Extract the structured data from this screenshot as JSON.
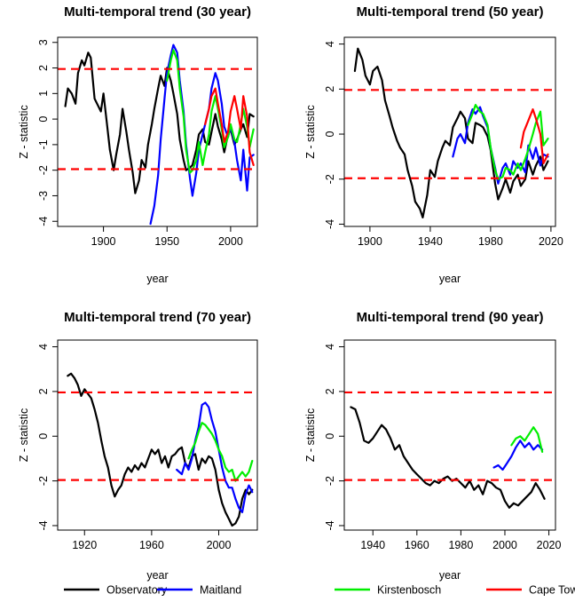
{
  "chart_data": [
    {
      "type": "line",
      "title": "Multi-temporal trend (30 year)",
      "xlabel": "year",
      "ylabel": "Z - statistic",
      "xlim": [
        1864,
        2021
      ],
      "ylim": [
        -4.2,
        3.2
      ],
      "xticks": [
        1900,
        1950,
        2000
      ],
      "yticks": [
        -4,
        -3,
        -2,
        -1,
        0,
        1,
        2,
        3
      ],
      "threshold_lines": [
        1.96,
        -1.96
      ],
      "series": [
        {
          "name": "Observatory",
          "color": "#000000",
          "x": [
            1870,
            1872,
            1875,
            1878,
            1880,
            1883,
            1885,
            1888,
            1890,
            1893,
            1895,
            1898,
            1900,
            1903,
            1905,
            1908,
            1910,
            1913,
            1915,
            1918,
            1920,
            1923,
            1925,
            1928,
            1930,
            1933,
            1935,
            1938,
            1940,
            1943,
            1945,
            1948,
            1950,
            1953,
            1955,
            1958,
            1960,
            1963,
            1965,
            1968,
            1970,
            1973,
            1975,
            1978,
            1980,
            1983,
            1985,
            1988,
            1990,
            1993,
            1995,
            1998,
            2000,
            2003,
            2005,
            2008,
            2010,
            2013,
            2015,
            2018
          ],
          "y": [
            0.5,
            1.2,
            1.0,
            0.6,
            1.8,
            2.3,
            2.1,
            2.6,
            2.4,
            0.8,
            0.6,
            0.3,
            1.0,
            -0.3,
            -1.2,
            -2.0,
            -1.4,
            -0.6,
            0.4,
            -0.5,
            -1.2,
            -2.1,
            -2.9,
            -2.4,
            -1.6,
            -1.9,
            -1.0,
            -0.2,
            0.4,
            1.2,
            1.7,
            1.3,
            2.0,
            1.5,
            1.0,
            0.2,
            -0.8,
            -1.6,
            -2.0,
            -1.9,
            -1.8,
            -1.2,
            -0.6,
            -0.4,
            -0.9,
            -1.0,
            -0.5,
            0.2,
            -0.3,
            -0.8,
            -1.3,
            -0.6,
            -0.4,
            -1.0,
            -0.8,
            -0.4,
            -0.2,
            -0.7,
            0.2,
            0.1
          ]
        },
        {
          "name": "Maitland",
          "color": "#0000ff",
          "x": [
            1937,
            1940,
            1943,
            1945,
            1948,
            1950,
            1953,
            1955,
            1958,
            1960,
            1963,
            1965,
            1968,
            1970,
            1973,
            1975,
            1978,
            1980,
            1983,
            1985,
            1988,
            1990,
            1993,
            1995,
            1998,
            2000,
            2003,
            2005,
            2008,
            2010,
            2013,
            2015,
            2018
          ],
          "y": [
            -4.1,
            -3.4,
            -2.2,
            -0.8,
            0.8,
            1.8,
            2.5,
            2.9,
            2.6,
            1.5,
            0.3,
            -1.0,
            -2.3,
            -3.0,
            -2.1,
            -1.2,
            -0.6,
            -0.2,
            0.4,
            1.2,
            1.8,
            1.5,
            0.6,
            -0.3,
            -0.7,
            -0.3,
            -0.9,
            -1.6,
            -2.4,
            -1.2,
            -2.8,
            -1.5,
            -1.4
          ]
        },
        {
          "name": "Kirstenbosch",
          "color": "#00ee00",
          "x": [
            1950,
            1953,
            1955,
            1958,
            1960,
            1963,
            1965,
            1968,
            1970,
            1973,
            1975,
            1978,
            1980,
            1983,
            1985,
            1988,
            1990,
            1993,
            1995,
            1998,
            2000,
            2003,
            2005,
            2008,
            2010,
            2013,
            2015,
            2018
          ],
          "y": [
            1.5,
            2.3,
            2.7,
            2.3,
            1.2,
            0.1,
            -1.2,
            -2.1,
            -2.0,
            -1.6,
            -0.9,
            -1.8,
            -1.3,
            -0.6,
            0.3,
            0.9,
            0.4,
            -0.4,
            -1.1,
            -0.7,
            -0.2,
            -0.8,
            -0.9,
            -0.2,
            0.4,
            -0.3,
            -1.1,
            -0.4
          ]
        },
        {
          "name": "Cape Town Int.",
          "color": "#ff0000",
          "x": [
            1980,
            1983,
            1985,
            1988,
            1990,
            1993,
            1995,
            1998,
            2000,
            2003,
            2005,
            2008,
            2010,
            2013,
            2015,
            2018
          ],
          "y": [
            -0.2,
            0.4,
            0.9,
            1.2,
            0.6,
            -0.2,
            -0.9,
            -0.5,
            0.3,
            0.9,
            0.4,
            -0.4,
            0.9,
            0.1,
            -1.3,
            -1.8
          ]
        }
      ]
    },
    {
      "type": "line",
      "title": "Multi-temporal trend (50 year)",
      "xlabel": "year",
      "ylabel": "Z - statistic",
      "xlim": [
        1883,
        2023
      ],
      "ylim": [
        -4.1,
        4.3
      ],
      "xticks": [
        1900,
        1940,
        1980,
        2020
      ],
      "yticks": [
        -4,
        -2,
        0,
        2,
        4
      ],
      "threshold_lines": [
        1.96,
        -1.96
      ],
      "series": [
        {
          "name": "Observatory",
          "color": "#000000",
          "x": [
            1890,
            1892,
            1895,
            1897,
            1900,
            1902,
            1905,
            1908,
            1910,
            1913,
            1915,
            1918,
            1920,
            1923,
            1925,
            1928,
            1930,
            1933,
            1935,
            1938,
            1940,
            1943,
            1945,
            1948,
            1950,
            1953,
            1955,
            1958,
            1960,
            1963,
            1965,
            1968,
            1970,
            1973,
            1975,
            1978,
            1980,
            1983,
            1985,
            1988,
            1990,
            1993,
            1995,
            1998,
            2000,
            2003,
            2005,
            2008,
            2010,
            2013,
            2015,
            2018
          ],
          "y": [
            2.8,
            3.8,
            3.3,
            2.6,
            2.2,
            2.8,
            3.0,
            2.4,
            1.5,
            0.8,
            0.3,
            -0.3,
            -0.6,
            -0.9,
            -1.6,
            -2.3,
            -3.0,
            -3.3,
            -3.7,
            -2.7,
            -1.6,
            -1.9,
            -1.2,
            -0.6,
            -0.3,
            -0.5,
            0.3,
            0.7,
            1.0,
            0.7,
            -0.2,
            -0.4,
            0.5,
            0.4,
            0.3,
            -0.1,
            -0.7,
            -2.2,
            -2.9,
            -2.4,
            -2.0,
            -2.6,
            -2.1,
            -1.8,
            -2.3,
            -2.0,
            -1.2,
            -1.8,
            -1.4,
            -1.0,
            -1.6,
            -1.2
          ]
        },
        {
          "name": "Maitland",
          "color": "#0000ff",
          "x": [
            1955,
            1958,
            1960,
            1963,
            1965,
            1968,
            1970,
            1973,
            1975,
            1978,
            1980,
            1983,
            1985,
            1988,
            1990,
            1993,
            1995,
            1998,
            2000,
            2003,
            2005,
            2008,
            2010,
            2013,
            2015,
            2018
          ],
          "y": [
            -1.0,
            -0.2,
            0.0,
            -0.4,
            0.5,
            1.1,
            0.9,
            1.2,
            0.8,
            0.3,
            -0.6,
            -1.5,
            -2.2,
            -1.5,
            -1.3,
            -1.8,
            -1.2,
            -1.5,
            -1.3,
            -1.7,
            -0.5,
            -1.1,
            -0.6,
            -1.4,
            -0.9,
            -1.0
          ]
        },
        {
          "name": "Kirstenbosch",
          "color": "#00ee00",
          "x": [
            1965,
            1968,
            1970,
            1973,
            1975,
            1978,
            1980,
            1983,
            1985,
            1988,
            1990,
            1993,
            1995,
            1998,
            2000,
            2003,
            2005,
            2008,
            2010,
            2013,
            2015,
            2018
          ],
          "y": [
            0.4,
            0.9,
            1.3,
            1.0,
            0.9,
            0.4,
            -0.6,
            -1.6,
            -2.0,
            -1.9,
            -1.5,
            -1.6,
            -1.8,
            -1.3,
            -1.6,
            -1.1,
            -0.7,
            0.0,
            0.5,
            1.0,
            -0.5,
            -0.2
          ]
        },
        {
          "name": "Cape Town Int.",
          "color": "#ff0000",
          "x": [
            2000,
            2002,
            2005,
            2008,
            2010,
            2013,
            2015,
            2018
          ],
          "y": [
            -0.6,
            0.1,
            0.6,
            1.1,
            0.7,
            0.0,
            -1.3,
            -0.9
          ]
        }
      ]
    },
    {
      "type": "line",
      "title": "Multi-temporal trend (70 year)",
      "xlabel": "year",
      "ylabel": "Z - statistic",
      "xlim": [
        1904,
        2023
      ],
      "ylim": [
        -4.2,
        4.3
      ],
      "xticks": [
        1920,
        1960,
        2000
      ],
      "yticks": [
        -4,
        -2,
        0,
        2,
        4
      ],
      "threshold_lines": [
        1.96,
        -1.96
      ],
      "series": [
        {
          "name": "Observatory",
          "color": "#000000",
          "x": [
            1910,
            1912,
            1914,
            1916,
            1918,
            1920,
            1922,
            1924,
            1926,
            1928,
            1930,
            1932,
            1934,
            1936,
            1938,
            1940,
            1942,
            1944,
            1946,
            1948,
            1950,
            1952,
            1954,
            1956,
            1958,
            1960,
            1962,
            1964,
            1966,
            1968,
            1970,
            1972,
            1974,
            1976,
            1978,
            1980,
            1982,
            1984,
            1986,
            1988,
            1990,
            1992,
            1994,
            1996,
            1998,
            2000,
            2002,
            2004,
            2006,
            2008,
            2010,
            2012,
            2014,
            2016,
            2018,
            2020
          ],
          "y": [
            2.7,
            2.8,
            2.6,
            2.3,
            1.8,
            2.1,
            1.9,
            1.7,
            1.2,
            0.6,
            -0.2,
            -0.9,
            -1.4,
            -2.2,
            -2.7,
            -2.4,
            -2.2,
            -1.7,
            -1.4,
            -1.6,
            -1.3,
            -1.5,
            -1.2,
            -1.4,
            -1.0,
            -0.6,
            -0.8,
            -0.6,
            -1.2,
            -0.9,
            -1.4,
            -0.9,
            -0.8,
            -0.6,
            -0.5,
            -1.2,
            -1.4,
            -0.9,
            -0.8,
            -1.5,
            -1.0,
            -1.2,
            -0.9,
            -1.0,
            -1.5,
            -2.4,
            -3.0,
            -3.4,
            -3.7,
            -4.0,
            -3.9,
            -3.6,
            -2.8,
            -2.4,
            -2.6,
            -2.4
          ]
        },
        {
          "name": "Maitland",
          "color": "#0000ff",
          "x": [
            1975,
            1978,
            1980,
            1982,
            1984,
            1986,
            1988,
            1990,
            1992,
            1994,
            1996,
            1998,
            2000,
            2002,
            2004,
            2006,
            2008,
            2010,
            2012,
            2014,
            2016,
            2018,
            2020
          ],
          "y": [
            -1.5,
            -1.7,
            -1.2,
            -1.5,
            -1.0,
            -0.2,
            0.4,
            1.4,
            1.5,
            1.3,
            0.7,
            0.2,
            -0.6,
            -1.4,
            -2.0,
            -2.3,
            -2.3,
            -2.8,
            -3.2,
            -3.4,
            -2.6,
            -2.2,
            -2.5
          ]
        },
        {
          "name": "Kirstenbosch",
          "color": "#00ee00",
          "x": [
            1982,
            1984,
            1986,
            1988,
            1990,
            1992,
            1994,
            1996,
            1998,
            2000,
            2002,
            2004,
            2006,
            2008,
            2010,
            2012,
            2014,
            2016,
            2018,
            2020
          ],
          "y": [
            -1.0,
            -0.6,
            -0.3,
            0.2,
            0.6,
            0.5,
            0.3,
            0.1,
            -0.2,
            -0.6,
            -0.9,
            -1.4,
            -1.6,
            -1.5,
            -2.0,
            -1.8,
            -1.6,
            -1.8,
            -1.6,
            -1.1
          ]
        }
      ]
    },
    {
      "type": "line",
      "title": "Multi-temporal trend (90 year)",
      "xlabel": "year",
      "ylabel": "Z - statistic",
      "xlim": [
        1927,
        2023
      ],
      "ylim": [
        -4.2,
        4.3
      ],
      "xticks": [
        1940,
        1960,
        1980,
        2000,
        2020
      ],
      "yticks": [
        -4,
        -2,
        0,
        2,
        4
      ],
      "threshold_lines": [
        1.96,
        -1.96
      ],
      "series": [
        {
          "name": "Observatory",
          "color": "#000000",
          "x": [
            1930,
            1932,
            1934,
            1936,
            1938,
            1940,
            1942,
            1944,
            1946,
            1948,
            1950,
            1952,
            1954,
            1956,
            1958,
            1960,
            1962,
            1964,
            1966,
            1968,
            1970,
            1972,
            1974,
            1976,
            1978,
            1980,
            1982,
            1984,
            1986,
            1988,
            1990,
            1992,
            1994,
            1996,
            1998,
            2000,
            2002,
            2004,
            2006,
            2008,
            2010,
            2012,
            2014,
            2016,
            2018
          ],
          "y": [
            1.3,
            1.2,
            0.6,
            -0.2,
            -0.3,
            -0.1,
            0.2,
            0.5,
            0.3,
            -0.1,
            -0.6,
            -0.4,
            -0.9,
            -1.2,
            -1.5,
            -1.7,
            -1.9,
            -2.1,
            -2.2,
            -2.0,
            -2.1,
            -1.9,
            -1.8,
            -2.0,
            -1.9,
            -2.1,
            -2.3,
            -2.0,
            -2.4,
            -2.2,
            -2.6,
            -2.0,
            -2.1,
            -2.3,
            -2.4,
            -2.9,
            -3.2,
            -3.0,
            -3.1,
            -2.9,
            -2.7,
            -2.5,
            -2.1,
            -2.4,
            -2.8
          ]
        },
        {
          "name": "Maitland",
          "color": "#0000ff",
          "x": [
            1995,
            1997,
            1999,
            2001,
            2003,
            2005,
            2007,
            2009,
            2011,
            2013,
            2015,
            2017
          ],
          "y": [
            -1.4,
            -1.3,
            -1.5,
            -1.2,
            -0.9,
            -0.5,
            -0.2,
            -0.5,
            -0.3,
            -0.6,
            -0.4,
            -0.6
          ]
        },
        {
          "name": "Kirstenbosch",
          "color": "#00ee00",
          "x": [
            2003,
            2005,
            2007,
            2009,
            2011,
            2013,
            2015,
            2017
          ],
          "y": [
            -0.4,
            -0.1,
            0.0,
            -0.2,
            0.1,
            0.4,
            0.1,
            -0.7
          ]
        }
      ]
    }
  ],
  "legend": [
    {
      "name": "Observatory",
      "color": "#000000"
    },
    {
      "name": "Maitland",
      "color": "#0000ff"
    },
    {
      "name": "Kirstenbosch",
      "color": "#00ee00"
    },
    {
      "name": "Cape Town Int.",
      "color": "#ff0000"
    }
  ],
  "colors": {
    "threshold": "#ff0000"
  }
}
